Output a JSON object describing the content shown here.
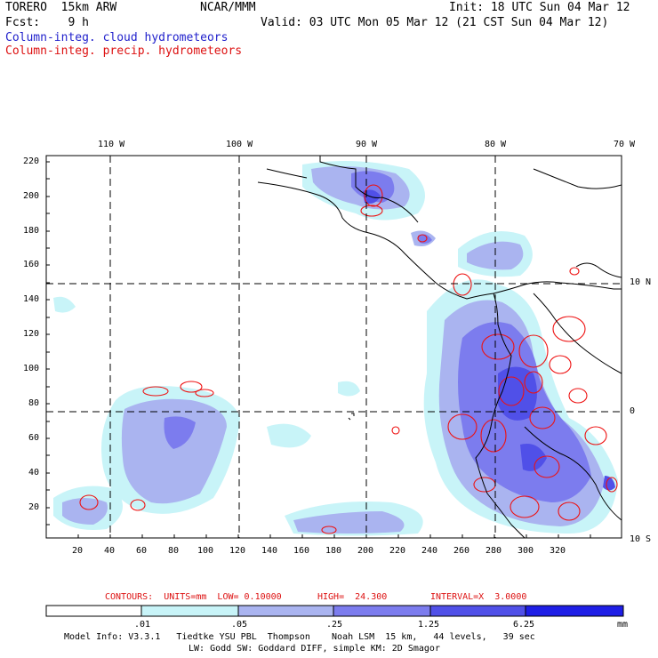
{
  "header": {
    "model": "TORERO  15km ARW",
    "org": "NCAR/MMM",
    "init": "Init: 18 UTC Sun 04 Mar 12",
    "fcst": "Fcst:    9 h",
    "valid": "Valid: 03 UTC Mon 05 Mar 12 (21 CST Sun 04 Mar 12)",
    "legend_cloud": "Column-integ. cloud hydrometeors",
    "legend_precip": "Column-integ. precip. hydrometeors"
  },
  "map": {
    "lon_labels": [
      "110 W",
      "100 W",
      "90 W",
      "80 W",
      "70 W"
    ],
    "lat_labels": [
      "10 N",
      "0",
      "10 S"
    ],
    "y_ticks": [
      "220",
      "200",
      "180",
      "160",
      "140",
      "120",
      "100",
      "80",
      "60",
      "40",
      "20"
    ],
    "x_ticks": [
      "20",
      "40",
      "60",
      "80",
      "100",
      "120",
      "140",
      "160",
      "180",
      "200",
      "220",
      "240",
      "260",
      "280",
      "300",
      "320"
    ]
  },
  "contour_info": {
    "units": "CONTOURS:  UNITS=mm  LOW= 0.10000",
    "high": "HIGH=  24.300",
    "interval": "INTERVAL=X  3.0000"
  },
  "colorbar": {
    "labels": [
      ".01",
      ".05",
      ".25",
      "1.25",
      "6.25",
      "mm"
    ],
    "colors": [
      "#ffffff",
      "#c8f4f8",
      "#aab4f0",
      "#7c7cee",
      "#5050e8",
      "#1e1ee6"
    ]
  },
  "footer": {
    "line1": "Model Info: V3.3.1   Tiedtke YSU PBL  Thompson    Noah LSM  15 km,   44 levels,   39 sec",
    "line2": "LW: Godd SW: Goddard DIFF, simple KM: 2D Smagor"
  }
}
